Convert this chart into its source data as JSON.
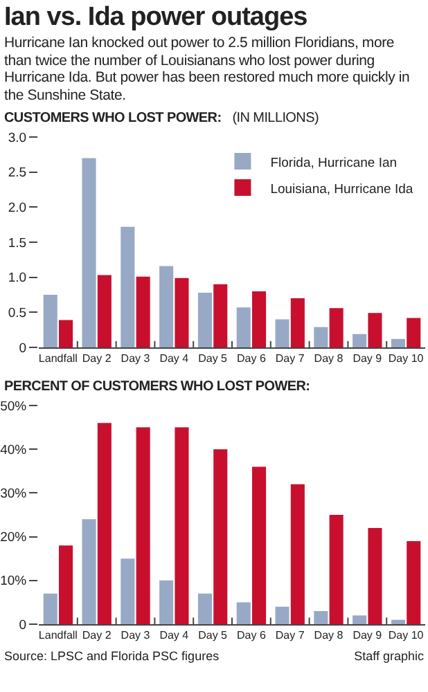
{
  "chart_data": [
    {
      "type": "bar",
      "title": "Ian vs. Ida power outages",
      "subtitle": "Hurricane Ian knocked out power to 2.5 million Floridians, more than twice the number of Louisianans who lost power during Hurricane Ida. But power has been restored much more quickly in the Sunshine State.",
      "ylabel": "CUSTOMERS WHO LOST POWER:",
      "annotations": [
        "(IN MILLIONS)"
      ],
      "categories": [
        "Landfall",
        "Day 2",
        "Day 3",
        "Day 4",
        "Day 5",
        "Day 6",
        "Day 7",
        "Day 8",
        "Day 9",
        "Day 10"
      ],
      "series": [
        {
          "name": "Florida, Hurricane Ian",
          "color": "#98a9c6",
          "values": [
            0.75,
            2.7,
            1.72,
            1.16,
            0.78,
            0.57,
            0.4,
            0.29,
            0.19,
            0.12
          ]
        },
        {
          "name": "Louisiana, Hurricane Ida",
          "color": "#c8102e",
          "values": [
            0.39,
            1.03,
            1.01,
            0.99,
            0.9,
            0.8,
            0.7,
            0.56,
            0.49,
            0.42
          ]
        }
      ],
      "ylim": [
        0,
        3
      ],
      "yticks": [
        0,
        0.5,
        {
          "value": 1,
          "label": "1.0"
        },
        1.5,
        {
          "value": 2,
          "label": "2.0"
        },
        2.5,
        {
          "value": 3,
          "label": "3.0"
        }
      ],
      "grid": false,
      "legend": "top right"
    },
    {
      "type": "bar",
      "title": "PERCENT OF CUSTOMERS WHO LOST POWER:",
      "annotations": [
        "Source: LPSC and Florida PSC figures",
        "Staff graphic"
      ],
      "categories": [
        "Landfall",
        "Day 2",
        "Day 3",
        "Day 4",
        "Day 5",
        "Day 6",
        "Day 7",
        "Day 8",
        "Day 9",
        "Day 10"
      ],
      "series": [
        {
          "color": "#98a9c6",
          "values": [
            7,
            24,
            15,
            10,
            7,
            5,
            4,
            3,
            2,
            1
          ]
        },
        {
          "color": "#c8102e",
          "values": [
            18,
            46,
            45,
            45,
            40,
            36,
            32,
            25,
            22,
            19
          ]
        }
      ],
      "ylim": [
        0,
        50
      ],
      "yticks": [
        0,
        {
          "value": 10,
          "label": "10%"
        },
        {
          "value": 20,
          "label": "20%"
        },
        {
          "value": 30,
          "label": "30%"
        },
        {
          "value": 40,
          "label": "40%"
        },
        {
          "value": 50,
          "label": "50%"
        }
      ],
      "grid": false,
      "legend": false
    }
  ]
}
